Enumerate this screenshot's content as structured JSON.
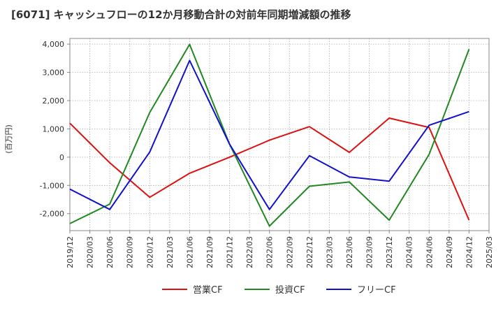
{
  "chart_data": {
    "type": "line",
    "title": "[6071]  キャッシュフローの12か月移動合計の対前年同期増減額の推移",
    "ylabel": "(百万円)",
    "xlabel": "",
    "ylim": [
      -2600,
      4200
    ],
    "yticks": [
      -2000,
      -1000,
      0,
      1000,
      2000,
      3000,
      4000
    ],
    "ytick_labels": [
      "-2,000",
      "-1,000",
      "0",
      "1,000",
      "2,000",
      "3,000",
      "4,000"
    ],
    "categories": [
      "2019/12",
      "2020/03",
      "2020/06",
      "2020/09",
      "2020/12",
      "2021/03",
      "2021/06",
      "2021/09",
      "2021/12",
      "2022/03",
      "2022/06",
      "2022/09",
      "2022/12",
      "2023/03",
      "2023/06",
      "2023/09",
      "2023/12",
      "2024/03",
      "2024/06",
      "2024/09",
      "2024/12",
      "2025/03"
    ],
    "grid": true,
    "legend_position": "bottom",
    "series": [
      {
        "name": "営業CF",
        "color": "#dd1111",
        "points": [
          [
            "2019/12",
            1200
          ],
          [
            "2020/06",
            -200
          ],
          [
            "2020/12",
            -1420
          ],
          [
            "2021/06",
            -570
          ],
          [
            "2021/12",
            0
          ],
          [
            "2022/06",
            600
          ],
          [
            "2022/12",
            1080
          ],
          [
            "2023/06",
            170
          ],
          [
            "2023/12",
            1380
          ],
          [
            "2024/06",
            1050
          ],
          [
            "2024/12",
            -2230
          ]
        ]
      },
      {
        "name": "投資CF",
        "color": "#228822",
        "points": [
          [
            "2019/12",
            -2350
          ],
          [
            "2020/06",
            -1660
          ],
          [
            "2020/12",
            1580
          ],
          [
            "2021/06",
            3990
          ],
          [
            "2021/12",
            460
          ],
          [
            "2022/06",
            -2440
          ],
          [
            "2022/12",
            -1030
          ],
          [
            "2023/06",
            -880
          ],
          [
            "2023/12",
            -2230
          ],
          [
            "2024/06",
            100
          ],
          [
            "2024/12",
            3820
          ]
        ]
      },
      {
        "name": "フリーCF",
        "color": "#1111cc",
        "points": [
          [
            "2019/12",
            -1130
          ],
          [
            "2020/06",
            -1850
          ],
          [
            "2020/12",
            180
          ],
          [
            "2021/06",
            3420
          ],
          [
            "2021/12",
            460
          ],
          [
            "2022/06",
            -1850
          ],
          [
            "2022/12",
            50
          ],
          [
            "2023/06",
            -700
          ],
          [
            "2023/12",
            -850
          ],
          [
            "2024/06",
            1130
          ],
          [
            "2024/12",
            1610
          ]
        ]
      }
    ]
  }
}
